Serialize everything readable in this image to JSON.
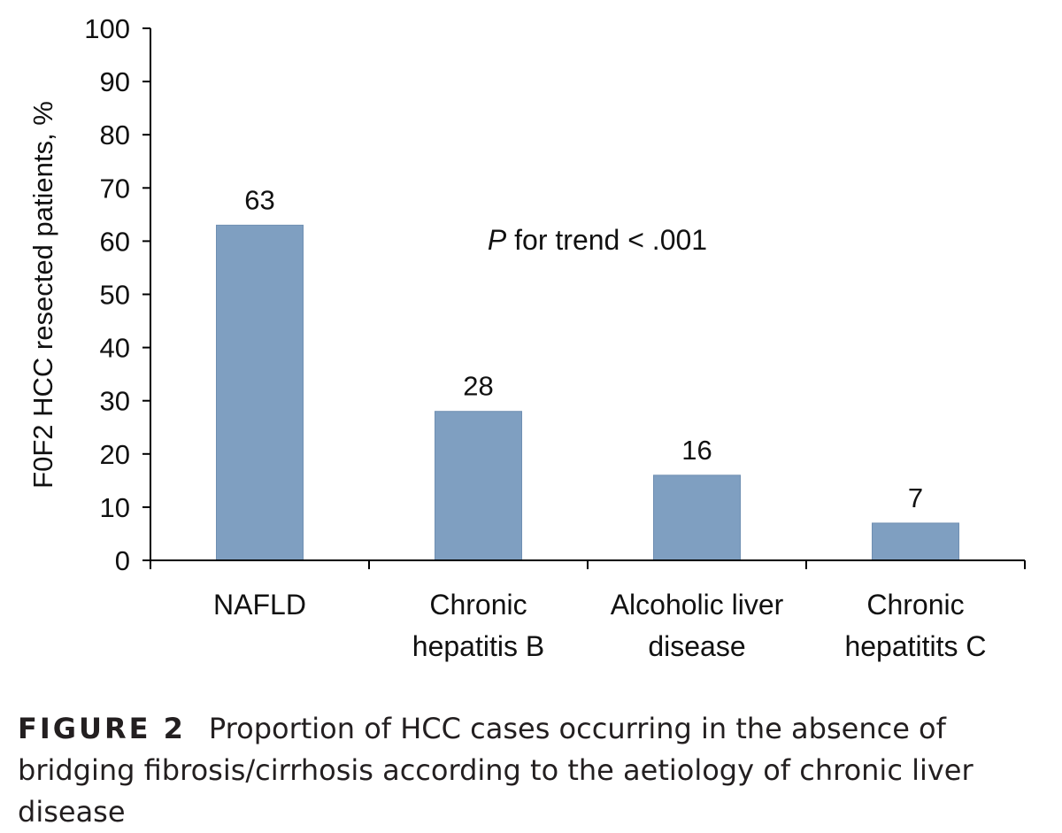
{
  "chart_data": {
    "type": "bar",
    "categories": [
      [
        "NAFLD"
      ],
      [
        "Chronic",
        "hepatitis B"
      ],
      [
        "Alcoholic liver",
        "disease"
      ],
      [
        "Chronic",
        "hepatitits C"
      ]
    ],
    "values": [
      63,
      28,
      16,
      7
    ],
    "data_labels": [
      "63",
      "28",
      "16",
      "7"
    ],
    "ylabel": "F0F2 HCC resected patients, %",
    "xlabel": "",
    "ylim": [
      0,
      100
    ],
    "yticks": [
      0,
      10,
      20,
      30,
      40,
      50,
      60,
      70,
      80,
      90,
      100
    ],
    "annotation": {
      "italic": "P",
      "text": " for trend < .001"
    },
    "bar_color": "#7f9fc1",
    "grid": false,
    "legend": "none"
  },
  "caption": {
    "label": "FIGURE 2",
    "text": "Proportion of HCC cases occurring in the absence of bridging fibrosis/cirrhosis according to the aetiology of chronic liver disease"
  }
}
